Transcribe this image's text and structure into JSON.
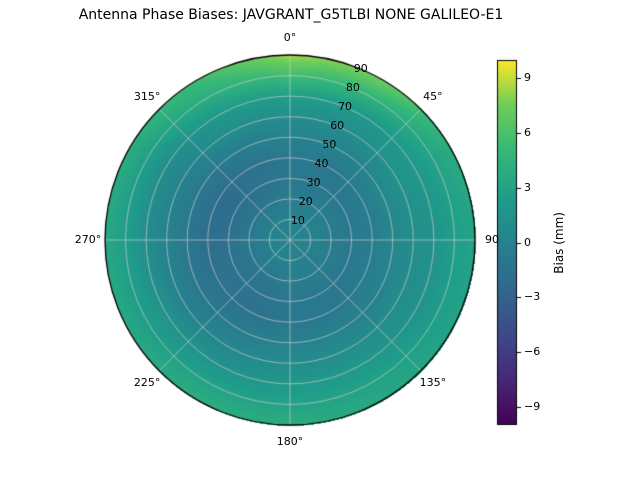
{
  "title": "Antenna Phase Biases: JAVGRANT_G5TLBI NONE GALILEO-E1",
  "chart_data": {
    "type": "heatmap",
    "projection": "polar",
    "title": "Antenna Phase Biases: JAVGRANT_G5TLBI NONE GALILEO-E1",
    "theta_zero_location": "top",
    "theta_direction": "clockwise",
    "theta_ticks_deg": [
      0,
      45,
      90,
      135,
      180,
      225,
      270,
      315
    ],
    "theta_tick_labels": [
      "0°",
      "45°",
      "90",
      "135°",
      "180°",
      "225°",
      "270°",
      "315°"
    ],
    "radial_ticks": [
      10,
      20,
      30,
      40,
      50,
      60,
      70,
      80,
      90
    ],
    "radial_tick_labels": [
      "10",
      "20",
      "30",
      "40",
      "50",
      "60",
      "70",
      "80",
      "90"
    ],
    "radial_label_angle_deg": 22.5,
    "grid": true,
    "azimuth_deg": [
      0,
      30,
      60,
      90,
      120,
      150,
      180,
      210,
      240,
      270,
      300,
      330
    ],
    "zenith_deg": [
      0,
      10,
      20,
      30,
      40,
      50,
      60,
      70,
      80,
      90
    ],
    "bias_mm": [
      [
        0.0,
        0.0,
        -0.5,
        -1.0,
        -1.0,
        0.0,
        1.0,
        2.5,
        5.5,
        8.5
      ],
      [
        0.0,
        0.0,
        -0.5,
        -1.0,
        -1.0,
        0.0,
        1.0,
        2.0,
        4.5,
        7.5
      ],
      [
        0.0,
        0.0,
        -0.5,
        -1.0,
        -0.5,
        0.5,
        1.5,
        2.0,
        3.0,
        4.0
      ],
      [
        0.0,
        0.0,
        -0.5,
        -1.0,
        -0.5,
        0.5,
        1.0,
        1.5,
        2.5,
        3.0
      ],
      [
        0.0,
        0.0,
        -0.5,
        -1.0,
        -0.5,
        0.0,
        1.0,
        1.5,
        2.5,
        3.0
      ],
      [
        0.0,
        0.0,
        -0.5,
        -1.0,
        -1.0,
        0.0,
        1.0,
        2.0,
        3.0,
        3.5
      ],
      [
        0.0,
        0.0,
        -0.5,
        -1.0,
        -1.0,
        0.0,
        1.0,
        2.0,
        3.0,
        4.0
      ],
      [
        0.0,
        0.0,
        -1.0,
        -1.5,
        -1.5,
        -0.5,
        0.5,
        1.5,
        3.0,
        4.0
      ],
      [
        0.0,
        0.0,
        -1.0,
        -1.5,
        -1.5,
        -1.0,
        0.0,
        1.5,
        2.5,
        3.5
      ],
      [
        0.0,
        0.0,
        -1.0,
        -1.5,
        -2.0,
        -1.0,
        0.0,
        1.0,
        2.5,
        3.5
      ],
      [
        0.0,
        0.0,
        -1.0,
        -2.0,
        -2.0,
        -1.0,
        0.0,
        1.0,
        2.5,
        4.0
      ],
      [
        0.0,
        0.0,
        -1.0,
        -1.5,
        -1.5,
        -0.5,
        1.0,
        2.0,
        4.0,
        5.5
      ]
    ],
    "colorbar": {
      "label": "Bias (mm)",
      "ticks": [
        9,
        6,
        3,
        0,
        -3,
        -6,
        -9
      ],
      "tick_labels": [
        "9",
        "6",
        "3",
        "0",
        "−3",
        "−6",
        "−9"
      ],
      "vmin": -10,
      "vmax": 10,
      "colormap": "viridis",
      "colormap_stops": [
        "#440154",
        "#482878",
        "#3e4a89",
        "#31688e",
        "#26828e",
        "#1f9e89",
        "#35b779",
        "#6dcd59",
        "#fde725"
      ]
    },
    "grid_color": "#cccccc",
    "background": "#ffffff"
  }
}
